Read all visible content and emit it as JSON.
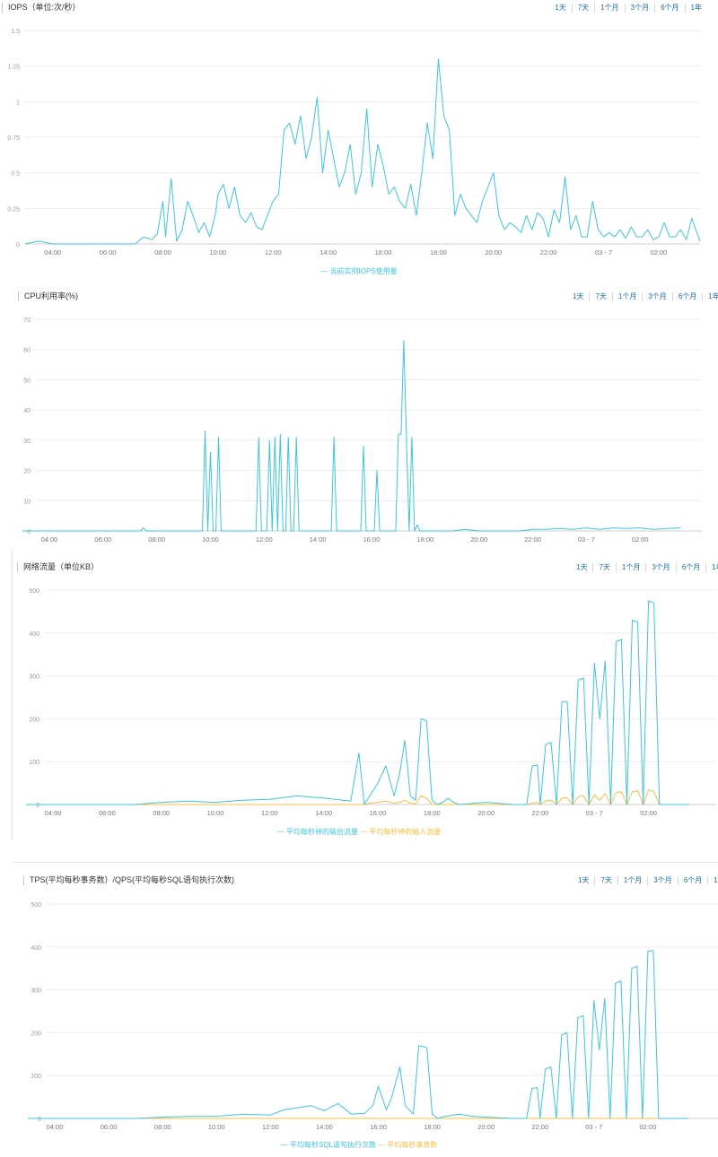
{
  "colors": {
    "series1": "#3ec6dc",
    "series2": "#f5bf40",
    "grid": "#eeeeee",
    "axis": "#9a9a9a",
    "link": "#1d6fa8"
  },
  "ranges": [
    "1天",
    "7天",
    "1个月",
    "3个月",
    "6个月",
    "1年"
  ],
  "x_labels": [
    "04:00",
    "06:00",
    "08:00",
    "10:00",
    "12:00",
    "14:00",
    "16:00",
    "18:00",
    "20:00",
    "22:00",
    "03 - 7",
    "02:00"
  ],
  "chart_data": [
    {
      "type": "line",
      "title": "IOPS（单位:次/秒）",
      "ylim": [
        0,
        1.5
      ],
      "yticks": [
        "0",
        "0.25",
        "0.5",
        "0.75",
        "1",
        "1.25",
        "1.5"
      ],
      "x_hours": [
        3,
        3.5,
        4,
        4.5,
        5,
        5.5,
        6,
        6.5,
        7,
        7.3,
        7.6,
        7.8,
        8,
        8.1,
        8.3,
        8.5,
        8.7,
        8.9,
        9.1,
        9.3,
        9.5,
        9.7,
        9.9,
        10,
        10.2,
        10.4,
        10.6,
        10.8,
        11,
        11.2,
        11.4,
        11.6,
        11.8,
        12,
        12.2,
        12.4,
        12.6,
        12.8,
        13,
        13.2,
        13.4,
        13.6,
        13.8,
        14,
        14.2,
        14.4,
        14.6,
        14.8,
        15,
        15.2,
        15.4,
        15.6,
        15.8,
        16,
        16.2,
        16.4,
        16.6,
        16.8,
        17,
        17.2,
        17.4,
        17.6,
        17.8,
        18,
        18.2,
        18.4,
        18.6,
        18.8,
        19,
        19.2,
        19.4,
        19.6,
        19.8,
        20,
        20.2,
        20.4,
        20.6,
        20.8,
        21,
        21.2,
        21.4,
        21.6,
        21.8,
        22,
        22.2,
        22.4,
        22.6,
        22.8,
        23,
        23.2,
        23.4,
        23.6,
        23.8,
        24,
        24.2,
        24.4,
        24.6,
        24.8,
        25,
        25.2,
        25.4,
        25.6,
        25.8,
        26,
        26.2,
        26.4,
        26.6,
        26.8,
        27,
        27.2,
        27.5
      ],
      "series": [
        {
          "name": "当前实例IOPS使用量",
          "values": [
            0,
            0.02,
            0,
            0,
            0,
            0,
            0,
            0,
            0,
            0.05,
            0.03,
            0.07,
            0.3,
            0.05,
            0.46,
            0.02,
            0.1,
            0.3,
            0.2,
            0.08,
            0.15,
            0.05,
            0.2,
            0.35,
            0.42,
            0.25,
            0.4,
            0.2,
            0.15,
            0.22,
            0.12,
            0.1,
            0.2,
            0.3,
            0.35,
            0.8,
            0.85,
            0.7,
            0.9,
            0.6,
            0.75,
            1.03,
            0.5,
            0.8,
            0.6,
            0.4,
            0.5,
            0.7,
            0.35,
            0.5,
            0.95,
            0.4,
            0.7,
            0.55,
            0.35,
            0.4,
            0.3,
            0.25,
            0.42,
            0.2,
            0.5,
            0.85,
            0.6,
            1.3,
            0.9,
            0.8,
            0.2,
            0.35,
            0.25,
            0.2,
            0.15,
            0.3,
            0.4,
            0.5,
            0.2,
            0.1,
            0.15,
            0.12,
            0.08,
            0.2,
            0.1,
            0.22,
            0.18,
            0.05,
            0.24,
            0.15,
            0.47,
            0.1,
            0.2,
            0.05,
            0.05,
            0.3,
            0.1,
            0.05,
            0.08,
            0.05,
            0.1,
            0.04,
            0.12,
            0.05,
            0.05,
            0.1,
            0.03,
            0.05,
            0.15,
            0.05,
            0.05,
            0.1,
            0.03,
            0.18,
            0.02
          ]
        }
      ]
    },
    {
      "type": "line",
      "title": "CPU利用率(%)",
      "ylim": [
        0,
        70
      ],
      "yticks": [
        "0",
        "10",
        "20",
        "30",
        "40",
        "50",
        "60",
        "70"
      ],
      "x_hours": [
        3,
        4,
        5,
        6,
        7,
        7.4,
        7.5,
        7.6,
        8,
        9,
        9.7,
        9.8,
        9.9,
        10,
        10.1,
        10.2,
        10.3,
        10.4,
        10.5,
        10.6,
        11,
        11.6,
        11.7,
        11.8,
        11.9,
        12,
        12.1,
        12.2,
        12.3,
        12.4,
        12.5,
        12.6,
        12.7,
        12.8,
        12.9,
        13,
        13.1,
        13.2,
        13.3,
        13.4,
        13.5,
        13.6,
        13.7,
        13.8,
        13.9,
        14,
        14.5,
        14.6,
        14.7,
        14.8,
        14.9,
        15,
        15.5,
        15.6,
        15.7,
        15.8,
        15.9,
        16,
        16.1,
        16.2,
        16.3,
        16.4,
        16.5,
        16.6,
        16.7,
        16.8,
        16.9,
        17,
        17.1,
        17.2,
        17.3,
        17.4,
        17.5,
        17.6,
        17.7,
        17.8,
        18,
        18.5,
        19,
        19.5,
        20,
        20.5,
        21,
        21.5,
        22,
        22.5,
        23,
        23.5,
        24,
        24.5,
        25,
        25.5,
        26,
        26.5,
        27,
        27.5
      ],
      "series": [
        {
          "name": "CPU利用率",
          "values": [
            0,
            0,
            0,
            0,
            0,
            0,
            1,
            0,
            0,
            0,
            0,
            33,
            0,
            26,
            0,
            0,
            31,
            0,
            0,
            0,
            0,
            0,
            0,
            31,
            0,
            0,
            0,
            30,
            0,
            31,
            0,
            32,
            0,
            0,
            31,
            0,
            0,
            31,
            0,
            0,
            0,
            0,
            0,
            0,
            0,
            0,
            0,
            31,
            0,
            0,
            0,
            0,
            0,
            0,
            28,
            0,
            0,
            0,
            0,
            20,
            0,
            0,
            0,
            0,
            0,
            0,
            0,
            32,
            32,
            63,
            30,
            0,
            31,
            0,
            2,
            0,
            0,
            0,
            0,
            0.5,
            0,
            0,
            0,
            0,
            0.5,
            0.5,
            0.8,
            0.5,
            1,
            0.5,
            1,
            0.8,
            1,
            0.5,
            0.8,
            1
          ]
        }
      ]
    },
    {
      "type": "line",
      "title": "网络流量（单位KB）",
      "ylim": [
        0,
        500
      ],
      "yticks": [
        "0",
        "100",
        "200",
        "300",
        "400",
        "500"
      ],
      "x_hours": [
        3,
        4,
        5,
        6,
        7,
        8,
        9,
        10,
        11,
        12,
        13,
        14,
        15,
        15.3,
        15.5,
        15.7,
        16,
        16.3,
        16.6,
        16.8,
        17,
        17.2,
        17.4,
        17.6,
        17.8,
        18,
        18.2,
        18.4,
        18.6,
        18.8,
        19,
        20,
        21,
        21.5,
        21.7,
        21.9,
        22,
        22.2,
        22.4,
        22.6,
        22.8,
        23,
        23.2,
        23.4,
        23.6,
        23.8,
        24,
        24.2,
        24.4,
        24.6,
        24.8,
        25,
        25.2,
        25.4,
        25.6,
        25.8,
        26,
        26.2,
        26.4,
        26.6,
        26.8,
        27,
        27.2,
        27.5
      ],
      "series": [
        {
          "name": "平均每秒钟的输出流量",
          "values": [
            0,
            0,
            0,
            0,
            0,
            5,
            8,
            5,
            10,
            12,
            20,
            15,
            8,
            120,
            0,
            20,
            50,
            90,
            20,
            70,
            150,
            20,
            10,
            200,
            195,
            10,
            0,
            5,
            15,
            5,
            0,
            5,
            0,
            0,
            90,
            92,
            0,
            140,
            145,
            0,
            240,
            240,
            0,
            290,
            295,
            0,
            330,
            200,
            335,
            0,
            380,
            385,
            0,
            430,
            425,
            0,
            475,
            470,
            0,
            0,
            0,
            0,
            0,
            0
          ]
        },
        {
          "name": "平均每秒钟的输入流量",
          "values": [
            0,
            0,
            0,
            0,
            0,
            0,
            0,
            0,
            0,
            0,
            0,
            0,
            0,
            0,
            0,
            3,
            5,
            8,
            3,
            5,
            10,
            3,
            2,
            20,
            15,
            0,
            0,
            0,
            0,
            0,
            0,
            0,
            0,
            0,
            3,
            5,
            0,
            8,
            10,
            0,
            15,
            15,
            0,
            18,
            20,
            0,
            22,
            10,
            25,
            0,
            28,
            30,
            0,
            30,
            32,
            0,
            34,
            30,
            0,
            0,
            0,
            0,
            0,
            0
          ]
        }
      ]
    },
    {
      "type": "line",
      "title": "TPS(平均每秒事务数）/QPS(平均每秒SQL语句执行次数)",
      "ylim": [
        0,
        500
      ],
      "yticks": [
        "0",
        "100",
        "200",
        "300",
        "400",
        "500"
      ],
      "x_hours": [
        3,
        4,
        5,
        6,
        7,
        8,
        9,
        10,
        11,
        12,
        12.5,
        13,
        13.5,
        14,
        14.5,
        15,
        15.5,
        15.8,
        16,
        16.3,
        16.5,
        16.8,
        17,
        17.3,
        17.5,
        17.8,
        18,
        18.2,
        18.5,
        19,
        19.5,
        20,
        21,
        21.5,
        21.7,
        21.9,
        22,
        22.2,
        22.4,
        22.6,
        22.8,
        23,
        23.2,
        23.4,
        23.6,
        23.8,
        24,
        24.2,
        24.4,
        24.6,
        24.8,
        25,
        25.2,
        25.4,
        25.6,
        25.8,
        26,
        26.2,
        26.4,
        26.6,
        26.8,
        27,
        27.2,
        27.5
      ],
      "series": [
        {
          "name": "平均每秒SQL语句执行次数",
          "values": [
            0,
            0,
            0,
            0,
            0,
            3,
            5,
            5,
            10,
            8,
            20,
            25,
            30,
            18,
            35,
            10,
            12,
            30,
            75,
            20,
            50,
            120,
            30,
            10,
            170,
            165,
            10,
            0,
            5,
            10,
            5,
            3,
            0,
            0,
            70,
            72,
            0,
            115,
            120,
            0,
            195,
            200,
            0,
            235,
            240,
            0,
            275,
            160,
            280,
            0,
            315,
            320,
            0,
            350,
            355,
            0,
            390,
            392,
            0,
            0,
            0,
            0,
            0,
            0
          ]
        },
        {
          "name": "平均每秒事务数",
          "values": [
            0,
            0,
            0,
            0,
            0,
            0,
            0,
            0,
            0,
            0,
            0,
            0,
            0,
            0,
            0,
            0,
            0,
            0,
            0,
            0,
            0,
            0,
            0,
            0,
            0,
            0,
            0,
            0,
            0,
            0,
            0,
            0,
            0,
            0,
            0,
            0,
            0,
            0,
            0,
            0,
            0,
            0,
            0,
            0,
            0,
            0,
            0,
            0,
            0,
            0,
            0,
            0,
            0,
            0,
            0,
            0,
            0,
            0,
            0,
            0,
            0,
            0,
            0,
            0
          ]
        }
      ]
    }
  ]
}
